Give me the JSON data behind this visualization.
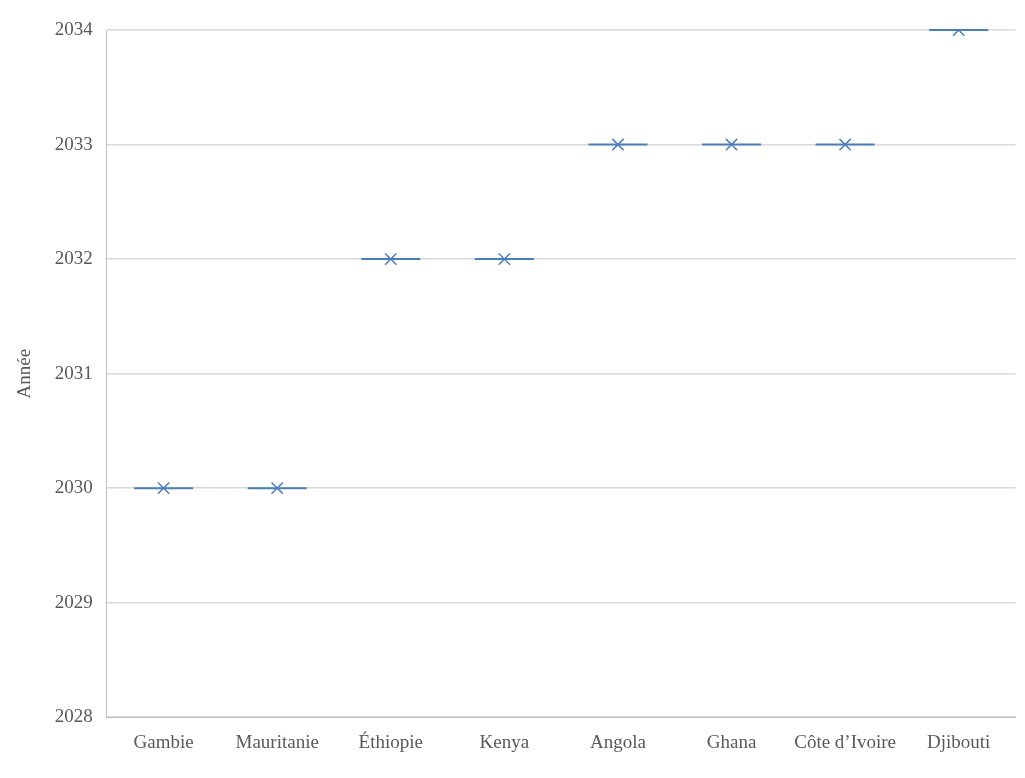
{
  "chart_data": {
    "type": "box",
    "ylabel": "Année",
    "categories": [
      "Gambie",
      "Mauritanie",
      "Éthiopie",
      "Kenya",
      "Angola",
      "Ghana",
      "Côte d’Ivoire",
      "Djibouti"
    ],
    "color": "#4a7ebb",
    "boxes": [
      {
        "low": 2030,
        "q1": 2030,
        "median": 2030,
        "q3": 2030,
        "high": 2030,
        "mean": 2030
      },
      {
        "low": 2030,
        "q1": 2030,
        "median": 2030,
        "q3": 2030,
        "high": 2030,
        "mean": 2030
      },
      {
        "low": 2032,
        "q1": 2032,
        "median": 2032,
        "q3": 2032,
        "high": 2032,
        "mean": 2032
      },
      {
        "low": 2032,
        "q1": 2032,
        "median": 2032,
        "q3": 2032,
        "high": 2032,
        "mean": 2032
      },
      {
        "low": 2033,
        "q1": 2033,
        "median": 2033,
        "q3": 2033,
        "high": 2033,
        "mean": 2033
      },
      {
        "low": 2033,
        "q1": 2033,
        "median": 2033,
        "q3": 2033,
        "high": 2033,
        "mean": 2033
      },
      {
        "low": 2033,
        "q1": 2033,
        "median": 2033,
        "q3": 2033,
        "high": 2033,
        "mean": 2033
      },
      {
        "low": 2034,
        "q1": 2034,
        "median": 2034,
        "q3": 2034,
        "high": 2034,
        "mean": 2034
      }
    ],
    "ylim": [
      2028,
      2034
    ],
    "yticks": [
      2028,
      2029,
      2030,
      2031,
      2032,
      2033,
      2034
    ],
    "grid": "y",
    "marker": "cross"
  }
}
